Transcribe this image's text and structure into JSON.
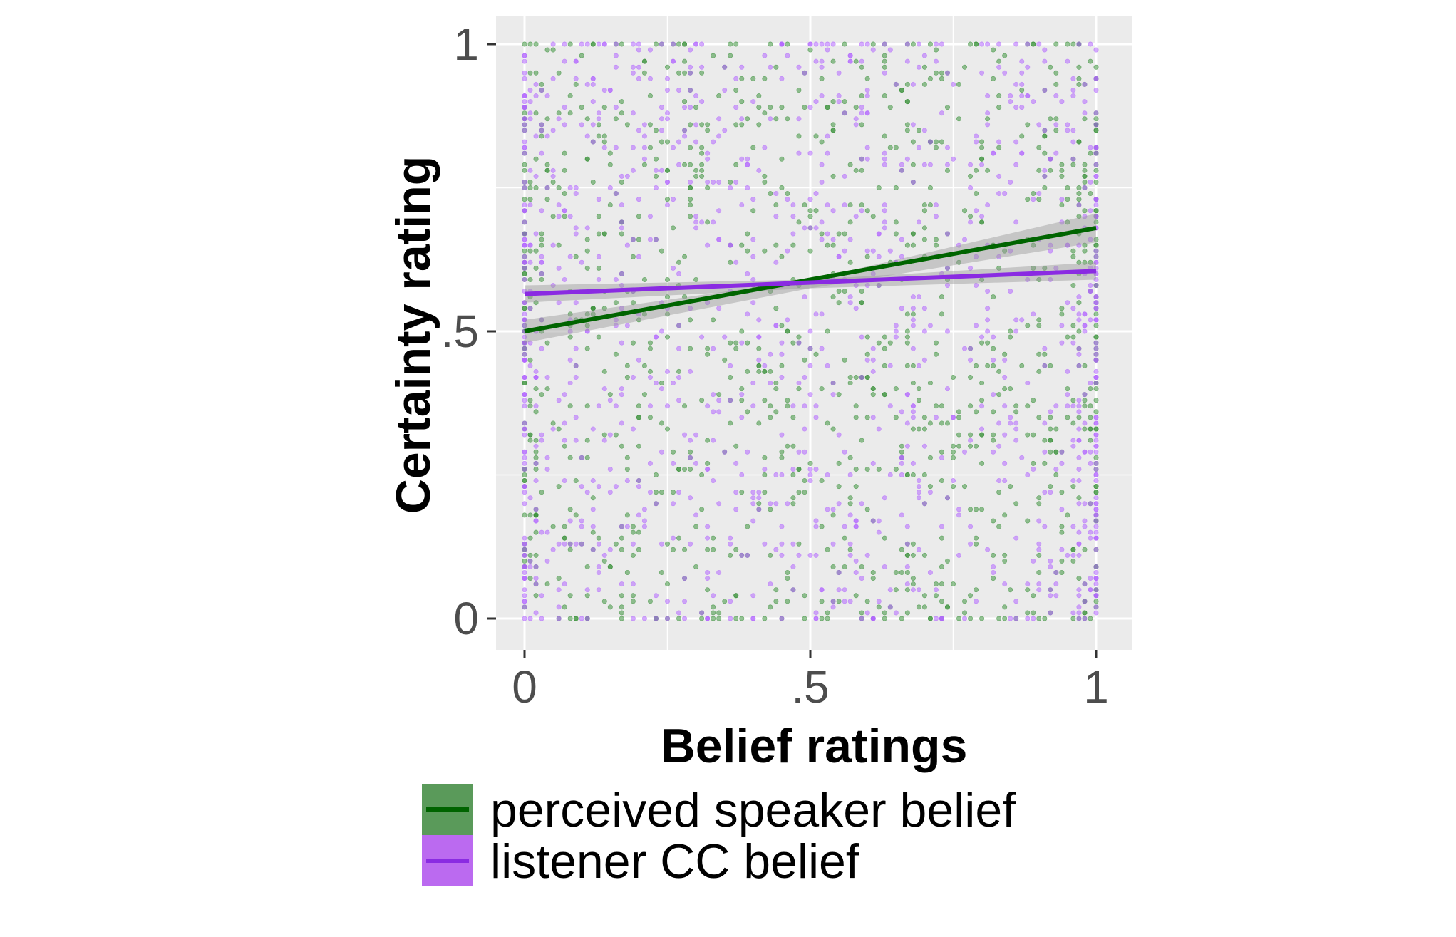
{
  "chart_data": {
    "type": "scatter",
    "xlabel": "Belief ratings",
    "ylabel": "Certainty rating",
    "xlim": [
      0,
      1
    ],
    "ylim": [
      0,
      1
    ],
    "x_ticks": [
      {
        "value": 0,
        "label": "0"
      },
      {
        "value": 0.5,
        "label": ".5"
      },
      {
        "value": 1,
        "label": "1"
      }
    ],
    "y_ticks": [
      {
        "value": 0,
        "label": "0"
      },
      {
        "value": 0.5,
        "label": ".5"
      },
      {
        "value": 1,
        "label": "1"
      }
    ],
    "grid": true,
    "legend_position": "bottom",
    "background_color": "#ebebeb",
    "series": [
      {
        "name": "perceived speaker belief",
        "point_color": "#2e8b2e",
        "line_color": "#006400",
        "legend_fill": "#5a9a5a",
        "regression": {
          "x": [
            0,
            1
          ],
          "y": [
            0.5,
            0.68
          ]
        },
        "ci_band": {
          "x": [
            0,
            0.5,
            1
          ],
          "lower": [
            0.48,
            0.575,
            0.655
          ],
          "upper": [
            0.52,
            0.59,
            0.705
          ]
        }
      },
      {
        "name": "listener CC belief",
        "point_color": "#b266ff",
        "line_color": "#8a2be2",
        "legend_fill": "#bb6af0",
        "regression": {
          "x": [
            0,
            1
          ],
          "y": [
            0.565,
            0.605
          ]
        },
        "ci_band": {
          "x": [
            0,
            0.5,
            1
          ],
          "lower": [
            0.55,
            0.575,
            0.59
          ],
          "upper": [
            0.58,
            0.59,
            0.62
          ]
        }
      }
    ]
  }
}
